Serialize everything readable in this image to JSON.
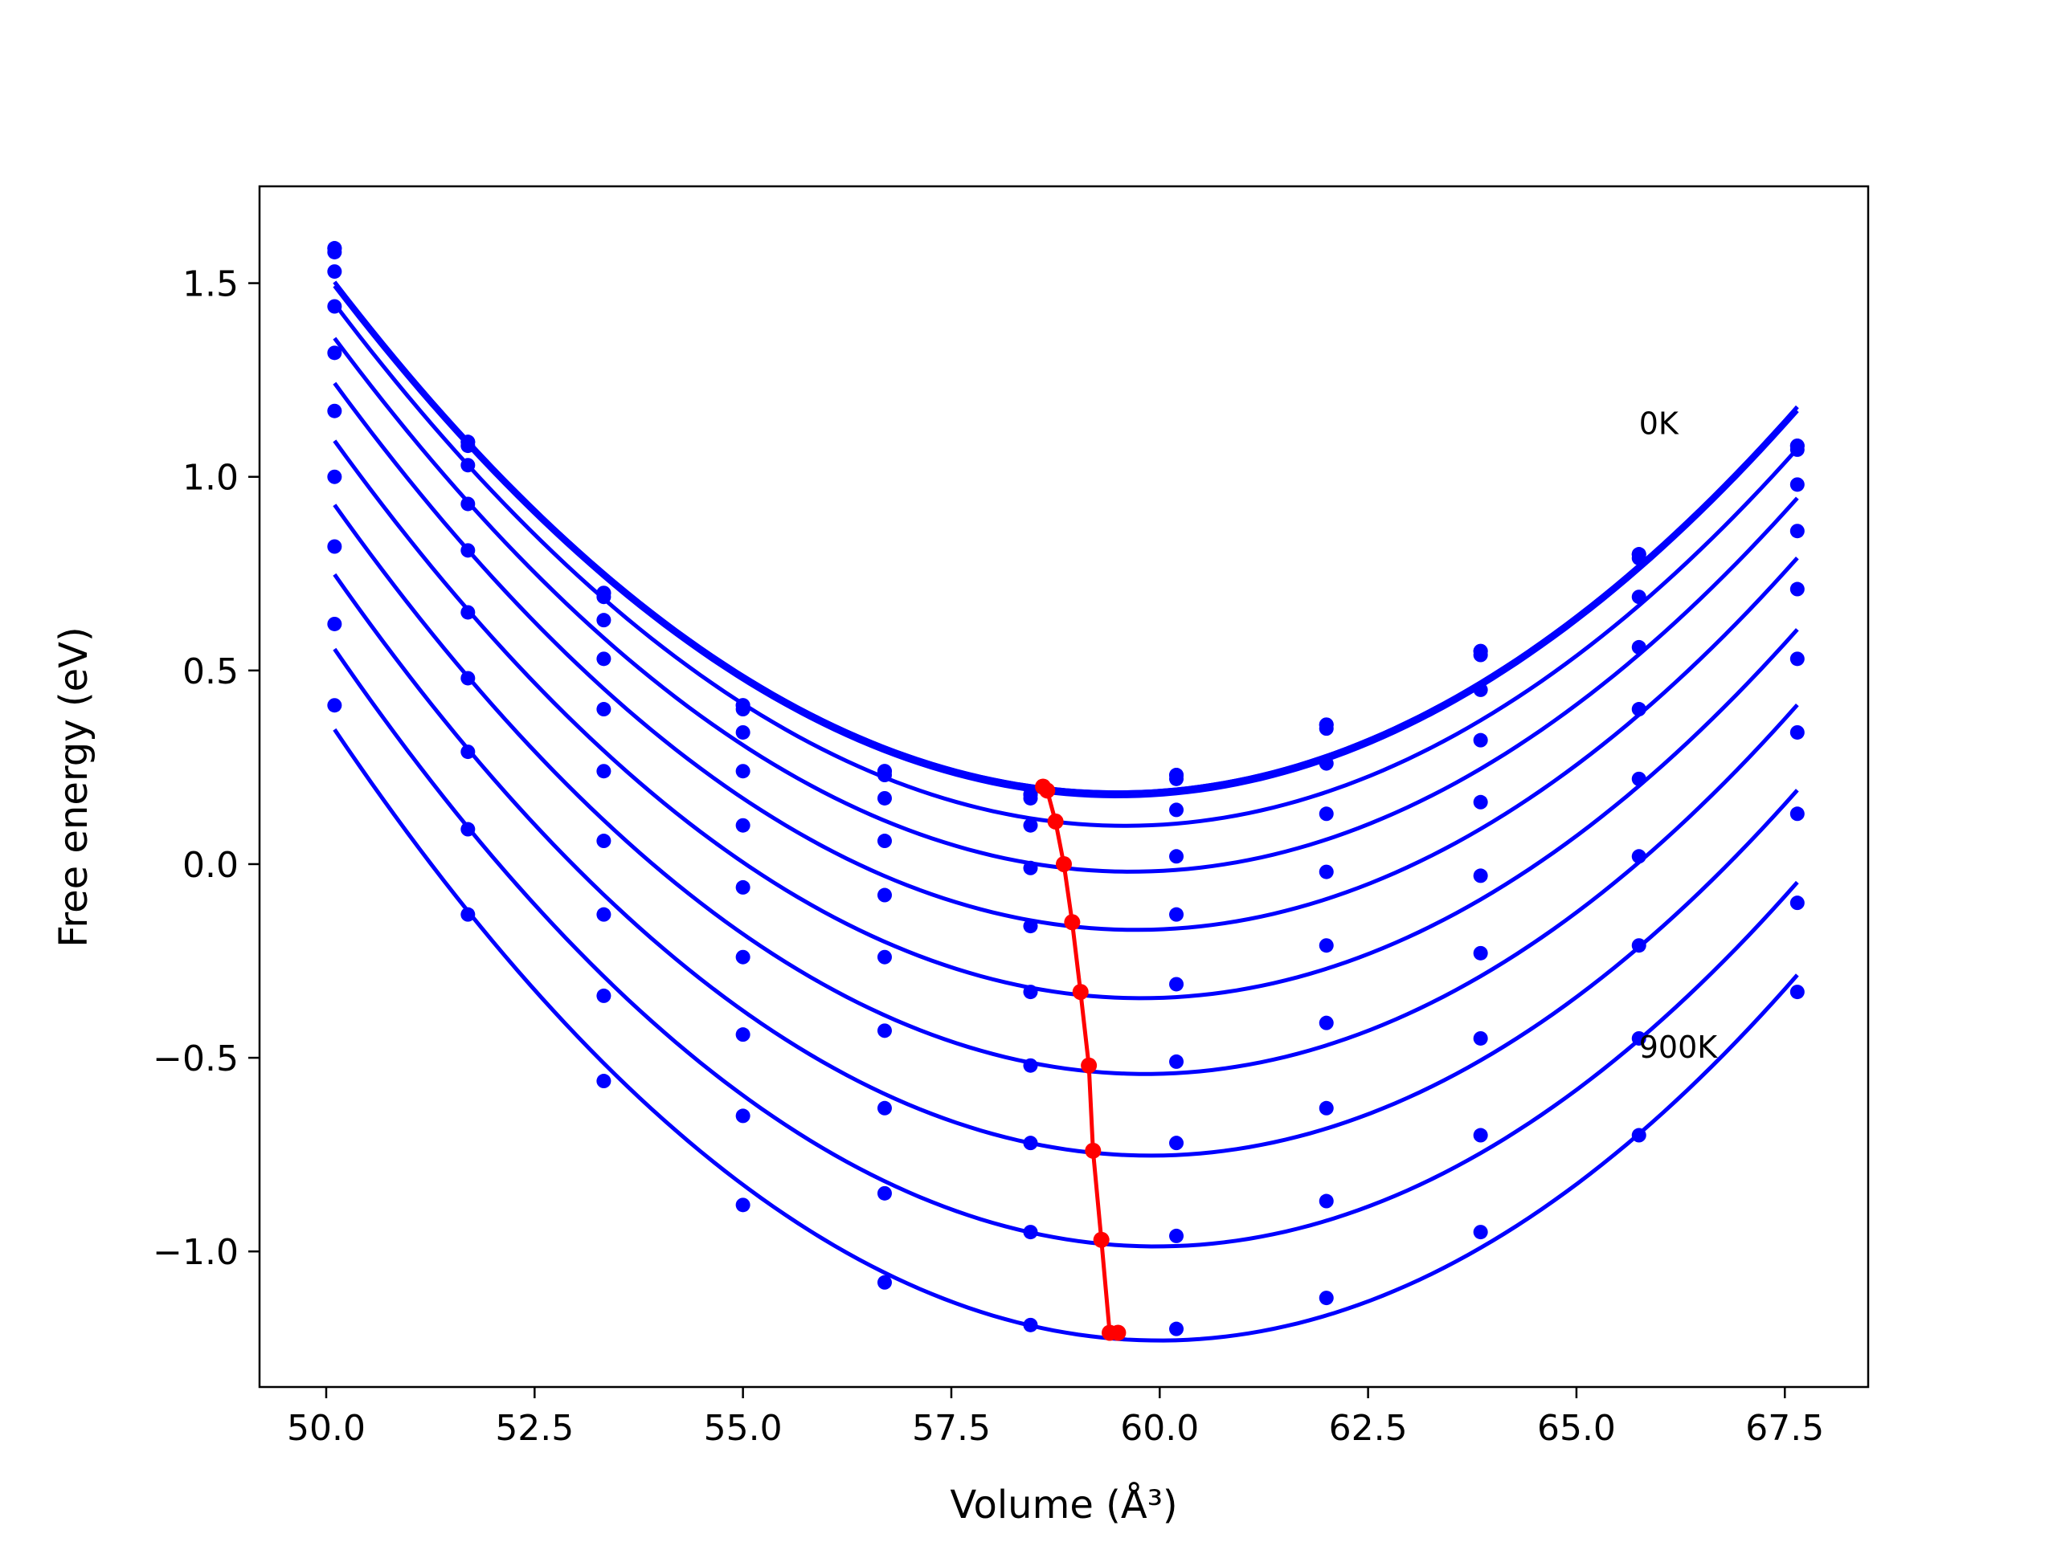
{
  "chart_data": {
    "type": "line",
    "title": "",
    "xlabel": "Volume (Å³)",
    "ylabel": "Free energy (eV)",
    "xlim": [
      49.2,
      68.5
    ],
    "ylim": [
      -1.35,
      1.75
    ],
    "x_ticks": [
      50.0,
      52.5,
      55.0,
      57.5,
      60.0,
      62.5,
      65.0,
      67.5
    ],
    "x_tick_labels": [
      "50.0",
      "52.5",
      "55.0",
      "57.5",
      "60.0",
      "62.5",
      "65.0",
      "67.5"
    ],
    "y_ticks": [
      -1.0,
      -0.5,
      0.0,
      0.5,
      1.0,
      1.5
    ],
    "y_tick_labels": [
      "−1.0",
      "−0.5",
      "0.0",
      "0.5",
      "1.0",
      "1.5"
    ],
    "grid": false,
    "annotations": [
      {
        "text": "0K",
        "x": 65.75,
        "y": 1.11
      },
      {
        "text": "900K",
        "x": 65.75,
        "y": -0.5
      }
    ],
    "x_points": [
      50.1,
      51.7,
      53.33,
      55.0,
      56.7,
      58.45,
      60.2,
      62.0,
      63.85,
      65.75,
      67.65
    ],
    "series": [
      {
        "color": "#0000ff",
        "values": [
          1.59,
          1.09,
          0.7,
          0.41,
          0.24,
          0.18,
          0.23,
          0.36,
          0.55,
          0.8,
          1.08
        ]
      },
      {
        "color": "#0000ff",
        "values": [
          1.59,
          1.09,
          0.7,
          0.41,
          0.24,
          0.18,
          0.23,
          0.36,
          0.55,
          0.8,
          1.08
        ]
      },
      {
        "color": "#0000ff",
        "values": [
          1.58,
          1.08,
          0.69,
          0.4,
          0.23,
          0.17,
          0.22,
          0.35,
          0.54,
          0.79,
          1.07
        ]
      },
      {
        "color": "#0000ff",
        "values": [
          1.53,
          1.03,
          0.63,
          0.34,
          0.17,
          0.1,
          0.14,
          0.26,
          0.45,
          0.69,
          0.98
        ]
      },
      {
        "color": "#0000ff",
        "values": [
          1.44,
          0.93,
          0.53,
          0.24,
          0.06,
          -0.01,
          0.02,
          0.13,
          0.32,
          0.56,
          0.86
        ]
      },
      {
        "color": "#0000ff",
        "values": [
          1.32,
          0.81,
          0.4,
          0.1,
          -0.08,
          -0.16,
          -0.13,
          -0.02,
          0.16,
          0.4,
          0.71
        ]
      },
      {
        "color": "#0000ff",
        "values": [
          1.17,
          0.65,
          0.24,
          -0.06,
          -0.24,
          -0.33,
          -0.31,
          -0.21,
          -0.03,
          0.22,
          0.53
        ]
      },
      {
        "color": "#0000ff",
        "values": [
          1.0,
          0.48,
          0.06,
          -0.24,
          -0.43,
          -0.52,
          -0.51,
          -0.41,
          -0.23,
          0.02,
          0.34
        ]
      },
      {
        "color": "#0000ff",
        "values": [
          0.82,
          0.29,
          -0.13,
          -0.44,
          -0.63,
          -0.72,
          -0.72,
          -0.63,
          -0.45,
          -0.21,
          0.13
        ]
      },
      {
        "color": "#0000ff",
        "values": [
          0.62,
          0.09,
          -0.34,
          -0.65,
          -0.85,
          -0.95,
          -0.96,
          -0.87,
          -0.7,
          -0.45,
          -0.1
        ]
      },
      {
        "color": "#0000ff",
        "values": [
          0.41,
          -0.13,
          -0.56,
          -0.88,
          -1.08,
          -1.19,
          -1.2,
          -1.12,
          -0.95,
          -0.7,
          -0.33
        ]
      }
    ],
    "minimum_line": {
      "color": "#ff0000",
      "x": [
        58.6,
        58.65,
        58.75,
        58.85,
        58.95,
        59.05,
        59.15,
        59.2,
        59.3,
        59.4,
        59.5
      ],
      "y": [
        0.2,
        0.19,
        0.11,
        0.0,
        -0.15,
        -0.33,
        -0.52,
        -0.74,
        -0.97,
        -1.21,
        -1.21
      ]
    }
  }
}
